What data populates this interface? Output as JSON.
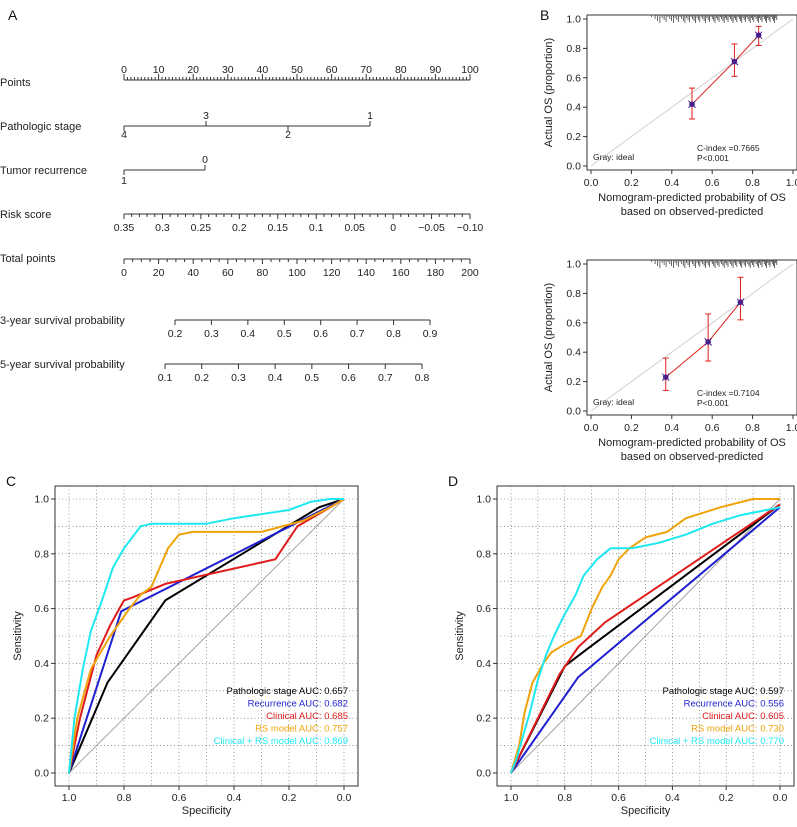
{
  "panel_letters": {
    "a": "A",
    "b": "B",
    "c": "C",
    "d": "D"
  },
  "colors": {
    "black": "#000000",
    "blue": "#1f1fd0",
    "red": "#e01b1b",
    "orange": "#f0a30a",
    "cyan": "#1ee8f0",
    "calib_line": "#e0201a",
    "calib_marker": "#4a1f8c",
    "diag": "#999999"
  },
  "nomogram": {
    "rows": [
      {
        "label": "Points",
        "ticks": [
          "0",
          "10",
          "20",
          "30",
          "40",
          "50",
          "60",
          "70",
          "80",
          "90",
          "100"
        ]
      },
      {
        "label": "Pathologic stage",
        "ticks_above": [
          "3",
          "1"
        ],
        "ticks_below": [
          "4",
          "2"
        ]
      },
      {
        "label": "Tumor recurrence",
        "ticks_above": [
          "0"
        ],
        "ticks_below": [
          "1"
        ]
      },
      {
        "label": "Risk score",
        "ticks": [
          "0.35",
          "0.3",
          "0.25",
          "0.2",
          "0.15",
          "0.1",
          "0.05",
          "0",
          "−0.05",
          "−0.10"
        ]
      },
      {
        "label": "Total points",
        "ticks": [
          "0",
          "20",
          "40",
          "60",
          "80",
          "100",
          "120",
          "140",
          "160",
          "180",
          "200"
        ]
      },
      {
        "label": "3-year survival probability",
        "ticks": [
          "0.2",
          "0.3",
          "0.4",
          "0.5",
          "0.6",
          "0.7",
          "0.8",
          "0.9"
        ]
      },
      {
        "label": "5-year survival probability",
        "ticks": [
          "0.1",
          "0.2",
          "0.3",
          "0.4",
          "0.5",
          "0.6",
          "0.7",
          "0.8"
        ]
      }
    ]
  },
  "chart_data": [
    {
      "id": "B-top",
      "type": "scatter",
      "title": "",
      "xlabel_line1": "Nomogram-predicted probability of OS",
      "xlabel_line2": "based on observed-predicted",
      "ylabel": "Actual OS (proportion)",
      "xlim": [
        0,
        1
      ],
      "ylim": [
        0,
        1
      ],
      "xticks": [
        "0.0",
        "0.2",
        "0.4",
        "0.6",
        "0.8",
        "1.0"
      ],
      "yticks": [
        "0.0",
        "0.2",
        "0.4",
        "0.6",
        "0.8",
        "1.0"
      ],
      "points": [
        {
          "x": 0.5,
          "y": 0.42,
          "lo": 0.32,
          "hi": 0.53
        },
        {
          "x": 0.71,
          "y": 0.71,
          "lo": 0.61,
          "hi": 0.83
        },
        {
          "x": 0.83,
          "y": 0.89,
          "lo": 0.82,
          "hi": 0.95
        }
      ],
      "ideal_label": "Gray: ideal",
      "cindex": "C-index =0.7665",
      "pvalue": "P<0.001"
    },
    {
      "id": "B-bottom",
      "type": "scatter",
      "title": "",
      "xlabel_line1": "Nomogram-predicted probability of OS",
      "xlabel_line2": "based on observed-predicted",
      "ylabel": "Actual OS (proportion)",
      "xlim": [
        0,
        1
      ],
      "ylim": [
        0,
        1
      ],
      "xticks": [
        "0.0",
        "0.2",
        "0.4",
        "0.6",
        "0.8",
        "1.0"
      ],
      "yticks": [
        "0.0",
        "0.2",
        "0.4",
        "0.6",
        "0.8",
        "1.0"
      ],
      "points": [
        {
          "x": 0.37,
          "y": 0.23,
          "lo": 0.14,
          "hi": 0.36
        },
        {
          "x": 0.58,
          "y": 0.47,
          "lo": 0.34,
          "hi": 0.66
        },
        {
          "x": 0.74,
          "y": 0.74,
          "lo": 0.62,
          "hi": 0.91
        }
      ],
      "ideal_label": "Gray: ideal",
      "cindex": "C-index =0.7104",
      "pvalue": "P<0.001"
    },
    {
      "id": "C",
      "type": "line",
      "title": "",
      "xlabel": "Specificity",
      "ylabel": "Sensitivity",
      "xlim": [
        1.0,
        0.0
      ],
      "ylim": [
        0,
        1
      ],
      "xticks": [
        "1.0",
        "0.8",
        "0.6",
        "0.4",
        "0.2",
        "0.0"
      ],
      "yticks": [
        "0.0",
        "0.2",
        "0.4",
        "0.6",
        "0.8",
        "1.0"
      ],
      "series": [
        {
          "name": "Pathologic stage AUC: 0.657",
          "color": "#000000",
          "points": [
            [
              1,
              0
            ],
            [
              0.86,
              0.33
            ],
            [
              0.65,
              0.63
            ],
            [
              0.09,
              0.97
            ],
            [
              0,
              1
            ]
          ]
        },
        {
          "name": "Recurrence AUC: 0.682",
          "color": "#1f1fd0",
          "points": [
            [
              1,
              0
            ],
            [
              0.81,
              0.59
            ],
            [
              0,
              1
            ]
          ]
        },
        {
          "name": "Clinical AUC: 0.685",
          "color": "#e01b1b",
          "points": [
            [
              1,
              0
            ],
            [
              0.96,
              0.2
            ],
            [
              0.9,
              0.43
            ],
            [
              0.85,
              0.54
            ],
            [
              0.8,
              0.63
            ],
            [
              0.77,
              0.64
            ],
            [
              0.65,
              0.69
            ],
            [
              0.25,
              0.78
            ],
            [
              0.17,
              0.9
            ],
            [
              0.05,
              0.97
            ],
            [
              0,
              1
            ]
          ]
        },
        {
          "name": "RS model AUC: 0.757",
          "color": "#f0a30a",
          "points": [
            [
              1,
              0
            ],
            [
              0.97,
              0.2
            ],
            [
              0.92,
              0.38
            ],
            [
              0.85,
              0.5
            ],
            [
              0.78,
              0.6
            ],
            [
              0.74,
              0.65
            ],
            [
              0.7,
              0.68
            ],
            [
              0.67,
              0.75
            ],
            [
              0.64,
              0.82
            ],
            [
              0.6,
              0.87
            ],
            [
              0.55,
              0.88
            ],
            [
              0.3,
              0.88
            ],
            [
              0.15,
              0.92
            ],
            [
              0.05,
              0.97
            ],
            [
              0,
              1
            ]
          ]
        },
        {
          "name": "Clinical + RS model AUC: 0.869",
          "color": "#1ee8f0",
          "points": [
            [
              1,
              0
            ],
            [
              0.98,
              0.2
            ],
            [
              0.95,
              0.38
            ],
            [
              0.92,
              0.52
            ],
            [
              0.88,
              0.63
            ],
            [
              0.84,
              0.75
            ],
            [
              0.8,
              0.82
            ],
            [
              0.77,
              0.86
            ],
            [
              0.74,
              0.9
            ],
            [
              0.7,
              0.91
            ],
            [
              0.5,
              0.91
            ],
            [
              0.4,
              0.93
            ],
            [
              0.2,
              0.96
            ],
            [
              0.12,
              0.99
            ],
            [
              0.05,
              1.0
            ],
            [
              0,
              1
            ]
          ]
        }
      ]
    },
    {
      "id": "D",
      "type": "line",
      "title": "",
      "xlabel": "Specificity",
      "ylabel": "Sensitivity",
      "xlim": [
        1.0,
        0.0
      ],
      "ylim": [
        0,
        1
      ],
      "xticks": [
        "1.0",
        "0.8",
        "0.6",
        "0.4",
        "0.2",
        "0.0"
      ],
      "yticks": [
        "0.0",
        "0.2",
        "0.4",
        "0.6",
        "0.8",
        "1.0"
      ],
      "series": [
        {
          "name": "Pathologic stage AUC: 0.597",
          "color": "#000000",
          "points": [
            [
              1,
              0
            ],
            [
              0.8,
              0.39
            ],
            [
              0.72,
              0.45
            ],
            [
              0,
              0.98
            ]
          ]
        },
        {
          "name": "Recurrence AUC: 0.556",
          "color": "#1f1fd0",
          "points": [
            [
              1,
              0
            ],
            [
              0.75,
              0.35
            ],
            [
              0,
              0.97
            ]
          ]
        },
        {
          "name": "Clinical AUC: 0.605",
          "color": "#e01b1b",
          "points": [
            [
              1,
              0
            ],
            [
              0.82,
              0.36
            ],
            [
              0.75,
              0.46
            ],
            [
              0.65,
              0.55
            ],
            [
              0,
              0.98
            ]
          ]
        },
        {
          "name": "RS model AUC: 0.730",
          "color": "#f0a30a",
          "points": [
            [
              1,
              0
            ],
            [
              0.97,
              0.1
            ],
            [
              0.95,
              0.22
            ],
            [
              0.92,
              0.33
            ],
            [
              0.88,
              0.4
            ],
            [
              0.85,
              0.44
            ],
            [
              0.8,
              0.47
            ],
            [
              0.74,
              0.5
            ],
            [
              0.7,
              0.6
            ],
            [
              0.66,
              0.68
            ],
            [
              0.63,
              0.72
            ],
            [
              0.6,
              0.78
            ],
            [
              0.56,
              0.82
            ],
            [
              0.5,
              0.86
            ],
            [
              0.42,
              0.88
            ],
            [
              0.35,
              0.93
            ],
            [
              0.22,
              0.97
            ],
            [
              0.1,
              1.0
            ],
            [
              0,
              1
            ]
          ]
        },
        {
          "name": "Clinical + RS model AUC: 0.770",
          "color": "#1ee8f0",
          "points": [
            [
              1,
              0
            ],
            [
              0.98,
              0.05
            ],
            [
              0.96,
              0.12
            ],
            [
              0.93,
              0.22
            ],
            [
              0.9,
              0.34
            ],
            [
              0.87,
              0.43
            ],
            [
              0.84,
              0.5
            ],
            [
              0.8,
              0.58
            ],
            [
              0.76,
              0.65
            ],
            [
              0.73,
              0.72
            ],
            [
              0.68,
              0.78
            ],
            [
              0.63,
              0.82
            ],
            [
              0.55,
              0.82
            ],
            [
              0.45,
              0.84
            ],
            [
              0.35,
              0.87
            ],
            [
              0.25,
              0.91
            ],
            [
              0.15,
              0.94
            ],
            [
              0.05,
              0.96
            ],
            [
              0,
              0.97
            ]
          ]
        }
      ]
    }
  ]
}
